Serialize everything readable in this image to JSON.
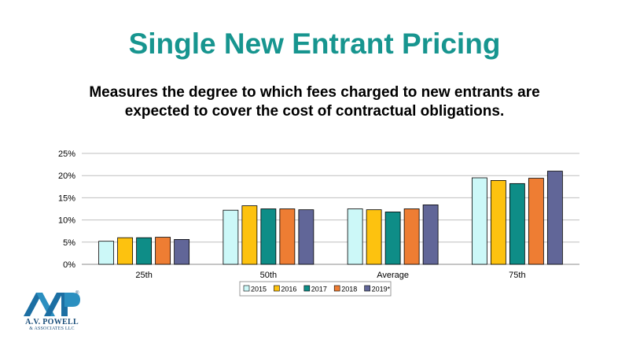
{
  "slide": {
    "title": "Single New Entrant Pricing",
    "subtitle": "Measures the degree to which fees charged to new entrants are expected to cover the cost of contractual obligations."
  },
  "logo": {
    "mark": "AVP",
    "name": "A.V. POWELL",
    "sub": "& ASSOCIATES LLC"
  },
  "chart_data": {
    "type": "bar",
    "title": "",
    "xlabel": "",
    "ylabel": "",
    "categories": [
      "25th",
      "50th",
      "Average",
      "75th"
    ],
    "series": [
      {
        "name": "2015",
        "color": "#ccf8f8",
        "values": [
          5.2,
          12.2,
          12.5,
          19.5
        ]
      },
      {
        "name": "2016",
        "color": "#fdc20f",
        "values": [
          6.0,
          13.2,
          12.3,
          18.9
        ]
      },
      {
        "name": "2017",
        "color": "#0e8d87",
        "values": [
          6.0,
          12.5,
          11.8,
          18.2
        ]
      },
      {
        "name": "2018",
        "color": "#ee7d33",
        "values": [
          6.1,
          12.5,
          12.5,
          19.4
        ]
      },
      {
        "name": "2019*",
        "color": "#616698",
        "values": [
          5.6,
          12.3,
          13.4,
          21.0
        ]
      }
    ],
    "ylim": [
      0,
      25
    ],
    "yticks": [
      0,
      5,
      10,
      15,
      20,
      25
    ],
    "ytick_suffix": "%",
    "grid": true,
    "legend_position": "bottom"
  }
}
